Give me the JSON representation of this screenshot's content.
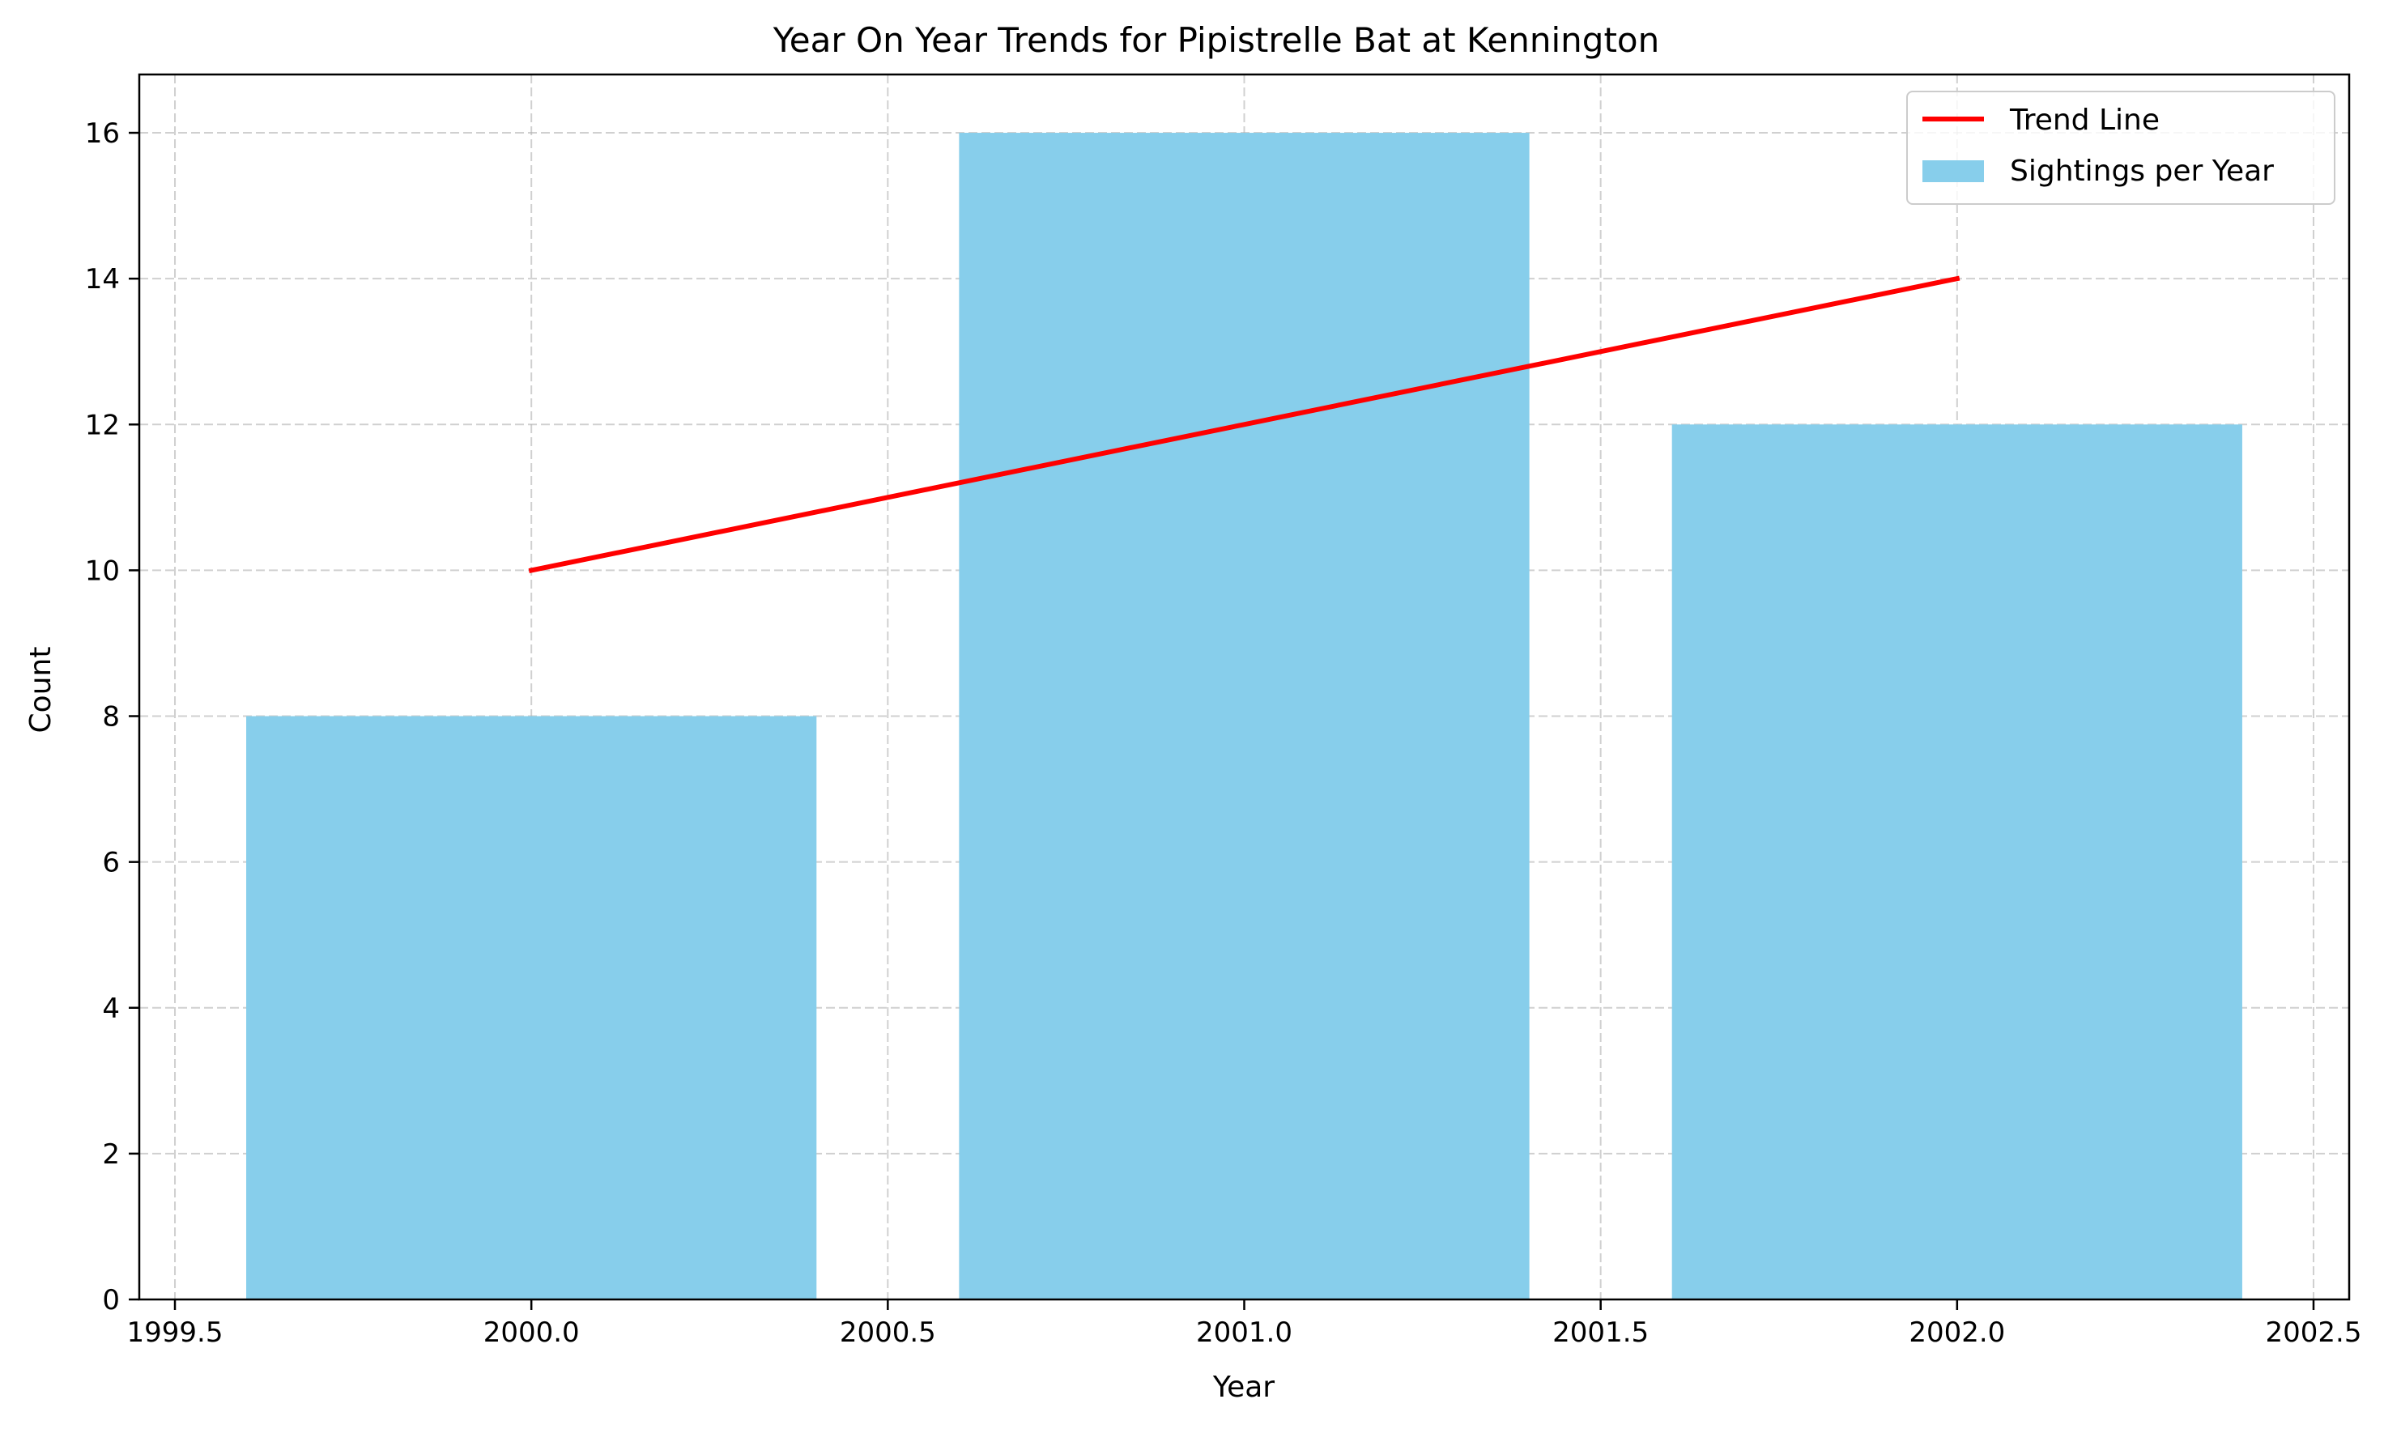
{
  "chart_data": {
    "type": "bar",
    "title": "Year On Year Trends for Pipistrelle Bat at Kennington",
    "xlabel": "Year",
    "ylabel": "Count",
    "xlim": [
      1999.45,
      2002.55
    ],
    "ylim": [
      0,
      16.8
    ],
    "x_ticks": [
      {
        "value": 1999.5,
        "label": "1999.5"
      },
      {
        "value": 2000.0,
        "label": "2000.0"
      },
      {
        "value": 2000.5,
        "label": "2000.5"
      },
      {
        "value": 2001.0,
        "label": "2001.0"
      },
      {
        "value": 2001.5,
        "label": "2001.5"
      },
      {
        "value": 2002.0,
        "label": "2002.0"
      },
      {
        "value": 2002.5,
        "label": "2002.5"
      }
    ],
    "y_ticks": [
      {
        "value": 0,
        "label": "0"
      },
      {
        "value": 2,
        "label": "2"
      },
      {
        "value": 4,
        "label": "4"
      },
      {
        "value": 6,
        "label": "6"
      },
      {
        "value": 8,
        "label": "8"
      },
      {
        "value": 10,
        "label": "10"
      },
      {
        "value": 12,
        "label": "12"
      },
      {
        "value": 14,
        "label": "14"
      },
      {
        "value": 16,
        "label": "16"
      }
    ],
    "grid": true,
    "legend_position": "top-right",
    "bars": {
      "name": "Sightings per Year",
      "color": "#87CEEB",
      "bar_width": 0.8,
      "x": [
        2000,
        2001,
        2002
      ],
      "values": [
        8,
        16,
        12
      ]
    },
    "trend_line": {
      "name": "Trend Line",
      "color": "#FF0000",
      "x": [
        2000,
        2001,
        2002
      ],
      "values": [
        10,
        12,
        14
      ]
    }
  }
}
